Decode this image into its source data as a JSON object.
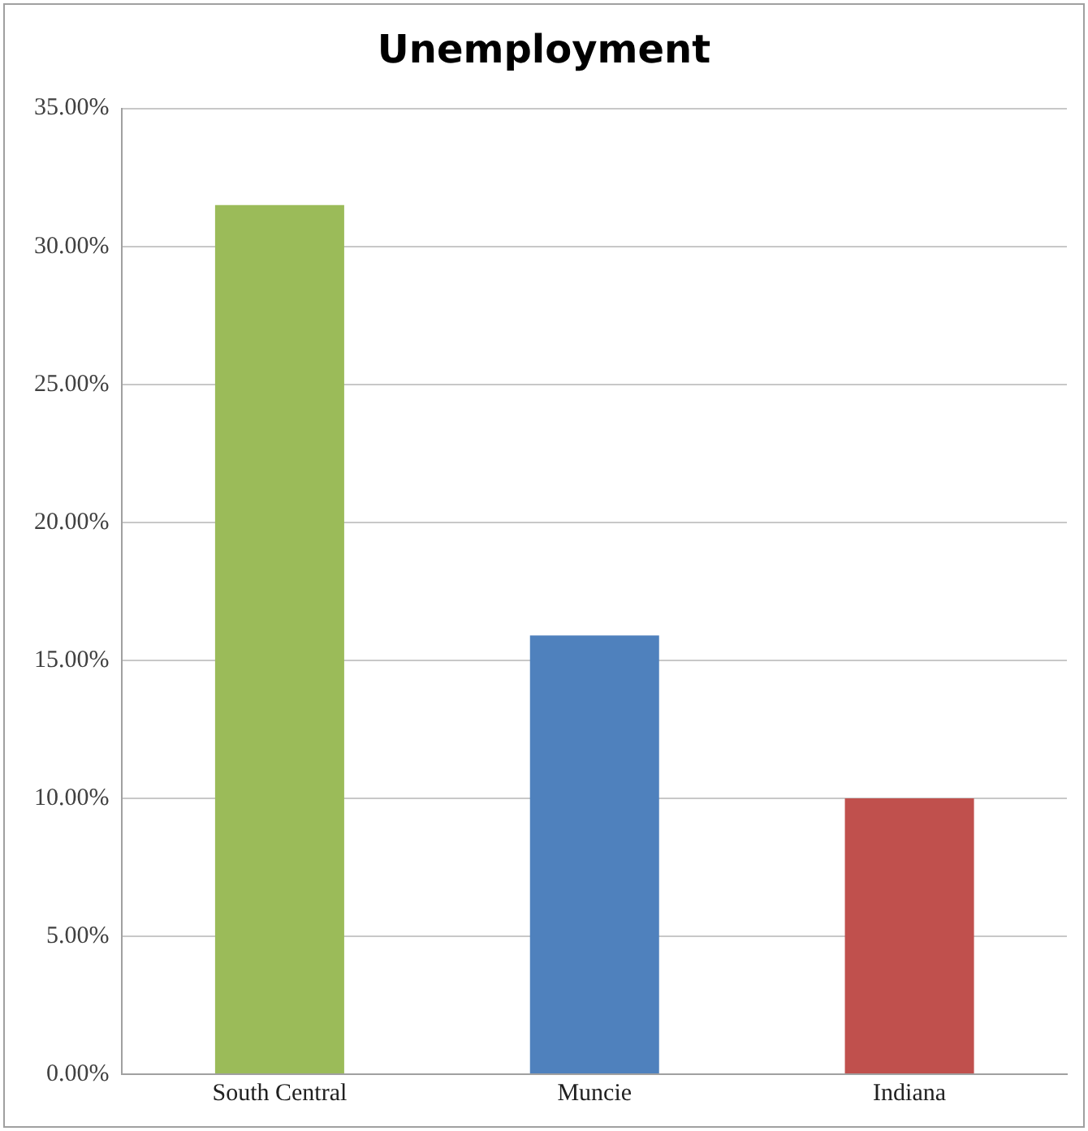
{
  "chart_data": {
    "type": "bar",
    "title": "Unemployment",
    "categories": [
      "South Central",
      "Muncie",
      "Indiana"
    ],
    "values": [
      31.5,
      15.9,
      10.0
    ],
    "colors": [
      "#9bbb59",
      "#4f81bd",
      "#c0504d"
    ],
    "ylim": [
      0,
      35
    ],
    "yticks": [
      {
        "value": 0,
        "label": "0.00%"
      },
      {
        "value": 5,
        "label": "5.00%"
      },
      {
        "value": 10,
        "label": "10.00%"
      },
      {
        "value": 15,
        "label": "15.00%"
      },
      {
        "value": 20,
        "label": "20.00%"
      },
      {
        "value": 25,
        "label": "25.00%"
      },
      {
        "value": 30,
        "label": "30.00%"
      },
      {
        "value": 35,
        "label": "35.00%"
      }
    ],
    "grid": "y",
    "legend": false
  }
}
